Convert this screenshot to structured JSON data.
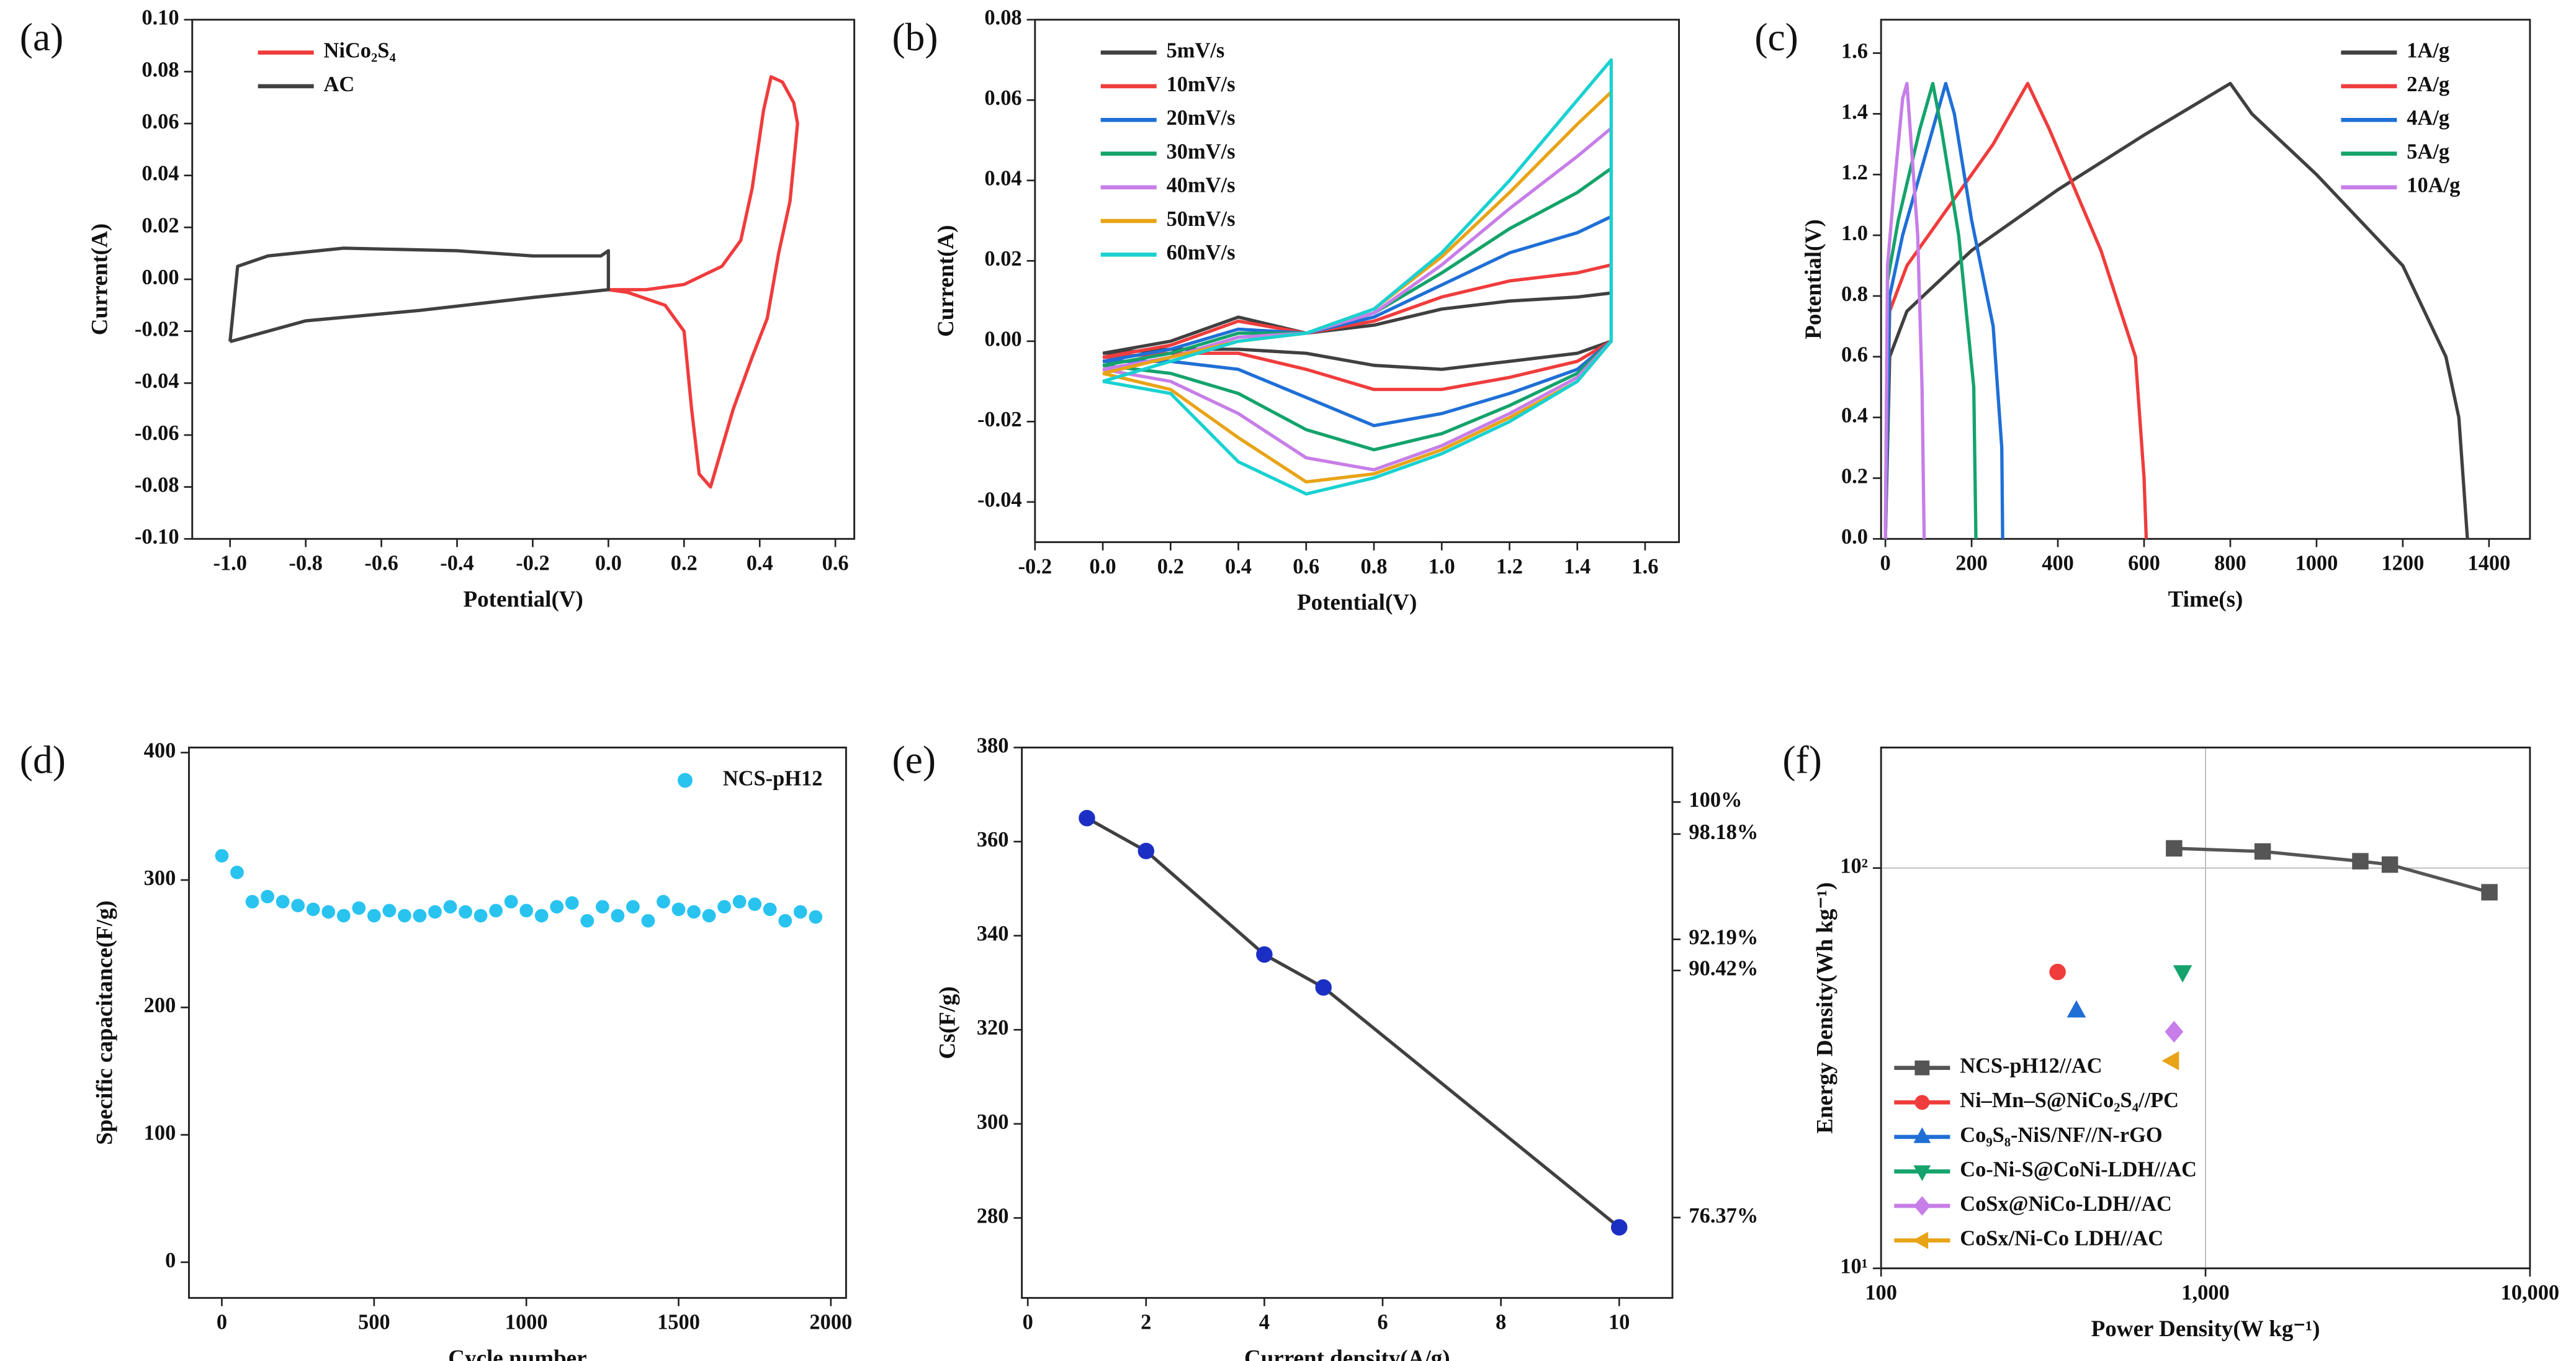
{
  "chart_data": [
    {
      "type": "line",
      "label": "(a)",
      "xlabel": "Potential(V)",
      "ylabel": "Current(A)",
      "xlim": [
        -1.1,
        0.65
      ],
      "ylim": [
        -0.1,
        0.1
      ],
      "xticks": [
        {
          "value": -1.0,
          "label": "-1.0"
        },
        -0.8,
        -0.6,
        -0.4,
        -0.2,
        {
          "value": 0,
          "label": "0.0"
        },
        0.2,
        0.4,
        0.6
      ],
      "yticks": [
        {
          "value": -0.1,
          "label": "-0.10"
        },
        -0.08,
        -0.06,
        -0.04,
        -0.02,
        {
          "value": 0,
          "label": "0.00"
        },
        0.02,
        0.04,
        0.06,
        0.08,
        {
          "value": 0.1,
          "label": "0.10"
        }
      ],
      "legend": "upper left",
      "series": [
        {
          "name": "NiCo₂S₄",
          "color": "#f03c3c",
          "x": [
            0,
            0.1,
            0.2,
            0.3,
            0.35,
            0.38,
            0.41,
            0.43,
            0.46,
            0.49,
            0.5,
            0.48,
            0.45,
            0.42,
            0.38,
            0.33,
            0.3,
            0.27,
            0.24,
            0.22,
            0.2,
            0.15,
            0.05,
            0
          ],
          "values": [
            -0.004,
            -0.004,
            -0.002,
            0.005,
            0.015,
            0.035,
            0.065,
            0.078,
            0.076,
            0.068,
            0.06,
            0.03,
            0.01,
            -0.015,
            -0.03,
            -0.05,
            -0.065,
            -0.08,
            -0.075,
            -0.05,
            -0.02,
            -0.01,
            -0.005,
            -0.004
          ]
        },
        {
          "name": "AC",
          "color": "#404040",
          "x": [
            -1.0,
            -0.98,
            -0.9,
            -0.7,
            -0.4,
            -0.2,
            -0.02,
            0,
            0,
            -0.2,
            -0.5,
            -0.8,
            -1.0
          ],
          "values": [
            -0.024,
            0.005,
            0.009,
            0.012,
            0.011,
            0.009,
            0.009,
            0.011,
            -0.004,
            -0.007,
            -0.012,
            -0.016,
            -0.024
          ]
        }
      ]
    },
    {
      "type": "line",
      "label": "(b)",
      "xlabel": "Potential(V)",
      "ylabel": "Current(A)",
      "xlim": [
        -0.2,
        1.7
      ],
      "ylim": [
        -0.05,
        0.08
      ],
      "xticks": [
        -0.2,
        {
          "value": 0,
          "label": "0.0"
        },
        0.2,
        0.4,
        0.6,
        0.8,
        {
          "value": 1,
          "label": "1.0"
        },
        1.2,
        1.4,
        1.6
      ],
      "yticks": [
        -0.04,
        -0.02,
        {
          "value": 0,
          "label": "0.00"
        },
        0.02,
        0.04,
        0.06,
        0.08
      ],
      "legend": "upper left",
      "x": [
        0,
        0.2,
        0.4,
        0.6,
        0.8,
        1.0,
        1.2,
        1.4,
        1.5,
        1.5,
        1.4,
        1.2,
        1.0,
        0.8,
        0.6,
        0.4,
        0.2,
        0
      ],
      "series": [
        {
          "name": "5mV/s",
          "color": "#404040",
          "values": [
            -0.003,
            0.0,
            0.006,
            0.002,
            0.004,
            0.008,
            0.01,
            0.011,
            0.012,
            0.0,
            -0.003,
            -0.005,
            -0.007,
            -0.006,
            -0.003,
            -0.002,
            -0.002,
            -0.003
          ]
        },
        {
          "name": "10mV/s",
          "color": "#f03c3c",
          "values": [
            -0.004,
            -0.001,
            0.005,
            0.002,
            0.005,
            0.011,
            0.015,
            0.017,
            0.019,
            0.0,
            -0.005,
            -0.009,
            -0.012,
            -0.012,
            -0.007,
            -0.003,
            -0.003,
            -0.004
          ]
        },
        {
          "name": "20mV/s",
          "color": "#1f6fd6",
          "values": [
            -0.005,
            -0.002,
            0.003,
            0.002,
            0.006,
            0.014,
            0.022,
            0.027,
            0.031,
            0.0,
            -0.007,
            -0.013,
            -0.018,
            -0.021,
            -0.014,
            -0.007,
            -0.005,
            -0.005
          ]
        },
        {
          "name": "30mV/s",
          "color": "#14a36b",
          "values": [
            -0.006,
            -0.003,
            0.002,
            0.002,
            0.007,
            0.017,
            0.028,
            0.037,
            0.043,
            0.0,
            -0.008,
            -0.016,
            -0.023,
            -0.027,
            -0.022,
            -0.013,
            -0.008,
            -0.006
          ]
        },
        {
          "name": "40mV/s",
          "color": "#c77ee8",
          "values": [
            -0.007,
            -0.004,
            0.001,
            0.002,
            0.007,
            0.019,
            0.033,
            0.046,
            0.053,
            0.0,
            -0.009,
            -0.018,
            -0.026,
            -0.032,
            -0.029,
            -0.018,
            -0.01,
            -0.007
          ]
        },
        {
          "name": "50mV/s",
          "color": "#e8a317",
          "values": [
            -0.008,
            -0.004,
            0.0,
            0.002,
            0.008,
            0.021,
            0.037,
            0.054,
            0.062,
            0.0,
            -0.01,
            -0.019,
            -0.027,
            -0.033,
            -0.035,
            -0.024,
            -0.012,
            -0.008
          ]
        },
        {
          "name": "60mV/s",
          "color": "#1ad1d1",
          "values": [
            -0.01,
            -0.005,
            0.0,
            0.002,
            0.008,
            0.022,
            0.04,
            0.06,
            0.07,
            0.0,
            -0.01,
            -0.02,
            -0.028,
            -0.034,
            -0.038,
            -0.03,
            -0.013,
            -0.01
          ]
        }
      ]
    },
    {
      "type": "line",
      "label": "(c)",
      "xlabel": "Time(s)",
      "ylabel": "Potential(V)",
      "xlim": [
        -10,
        1495
      ],
      "ylim": [
        0,
        1.71
      ],
      "xticks": [
        0,
        200,
        400,
        600,
        800,
        1000,
        1200,
        1400
      ],
      "yticks": [
        {
          "value": 0,
          "label": "0.0"
        },
        0.2,
        0.4,
        0.6,
        0.8,
        {
          "value": 1,
          "label": "1.0"
        },
        1.2,
        1.4,
        1.6
      ],
      "legend": "upper right",
      "series": [
        {
          "name": "1A/g",
          "color": "#404040",
          "x": [
            0,
            10,
            50,
            200,
            400,
            600,
            800,
            850,
            1000,
            1200,
            1300,
            1330,
            1345,
            1350
          ],
          "values": [
            0,
            0.6,
            0.75,
            0.95,
            1.15,
            1.33,
            1.5,
            1.4,
            1.2,
            0.9,
            0.6,
            0.4,
            0.1,
            0
          ]
        },
        {
          "name": "2A/g",
          "color": "#f03c3c",
          "x": [
            0,
            10,
            50,
            150,
            250,
            330,
            380,
            500,
            580,
            600,
            605
          ],
          "values": [
            0,
            0.75,
            0.9,
            1.1,
            1.3,
            1.5,
            1.35,
            0.95,
            0.6,
            0.2,
            0
          ]
        },
        {
          "name": "4A/g",
          "color": "#1f6fd6",
          "x": [
            0,
            10,
            40,
            100,
            140,
            160,
            200,
            250,
            270,
            272
          ],
          "values": [
            0,
            0.8,
            1.0,
            1.3,
            1.5,
            1.4,
            1.05,
            0.7,
            0.3,
            0
          ]
        },
        {
          "name": "5A/g",
          "color": "#14a36b",
          "x": [
            0,
            5,
            30,
            80,
            110,
            130,
            170,
            205,
            210
          ],
          "values": [
            0,
            0.85,
            1.05,
            1.35,
            1.5,
            1.35,
            1.0,
            0.5,
            0
          ]
        },
        {
          "name": "10A/g",
          "color": "#c77ee8",
          "x": [
            0,
            5,
            20,
            40,
            50,
            60,
            75,
            85,
            90
          ],
          "values": [
            0,
            0.9,
            1.15,
            1.45,
            1.5,
            1.3,
            1.0,
            0.5,
            0
          ]
        }
      ]
    },
    {
      "type": "scatter",
      "label": "(d)",
      "xlabel": "Cycle number",
      "ylabel": "Specific capacitance(F/g)",
      "xlim": [
        -108,
        2050
      ],
      "ylim": [
        -28,
        404
      ],
      "xticks": [
        0,
        500,
        1000,
        1500,
        2000
      ],
      "yticks": [
        0,
        100,
        200,
        300,
        400
      ],
      "legend": "upper right",
      "x": [
        0,
        50,
        100,
        150,
        200,
        250,
        300,
        350,
        400,
        450,
        500,
        550,
        600,
        650,
        700,
        750,
        800,
        850,
        900,
        950,
        1000,
        1050,
        1100,
        1150,
        1200,
        1250,
        1300,
        1350,
        1400,
        1450,
        1500,
        1550,
        1600,
        1650,
        1700,
        1750,
        1800,
        1850,
        1900,
        1950
      ],
      "series": [
        {
          "name": "NCS-pH12",
          "color": "#29c3f0",
          "values": [
            319,
            306,
            283,
            287,
            283,
            280,
            277,
            275,
            272,
            278,
            272,
            276,
            272,
            272,
            275,
            279,
            275,
            272,
            276,
            283,
            276,
            272,
            279,
            282,
            268,
            279,
            272,
            279,
            268,
            283,
            277,
            275,
            272,
            279,
            283,
            281,
            277,
            268,
            275,
            271
          ]
        }
      ]
    },
    {
      "type": "line",
      "label": "(e)",
      "xlabel": "Current density(A/g)",
      "ylabel": "Cs(F/g)",
      "xlim": [
        -0.1,
        10.9
      ],
      "ylim": [
        263,
        380
      ],
      "y2lim": [
        71.8,
        103.1
      ],
      "xticks": [
        0,
        2,
        4,
        6,
        8,
        10
      ],
      "yticks": [
        280,
        300,
        320,
        340,
        360,
        380
      ],
      "y2ticks": [
        {
          "value": 100,
          "label": "100%"
        },
        {
          "value": 98.18,
          "label": "98.18%"
        },
        {
          "value": 92.19,
          "label": "92.19%"
        },
        {
          "value": 90.42,
          "label": "90.42%"
        },
        {
          "value": 76.37,
          "label": "76.37%"
        }
      ],
      "series": [
        {
          "color": "#404040",
          "marker": "circle",
          "marker_color": "#1c2fc4",
          "x": [
            1,
            2,
            4,
            5,
            10
          ],
          "values": [
            365,
            358,
            336,
            329,
            278
          ]
        }
      ]
    },
    {
      "type": "line",
      "label": "(f)",
      "xlabel": "Power Density(W kg⁻¹)",
      "ylabel": "Energy Density(Wh kg⁻¹)",
      "xscale": "log",
      "yscale": "log",
      "grid": true,
      "xlim": [
        100,
        10000
      ],
      "ylim": [
        10,
        200
      ],
      "xticks": [
        100,
        {
          "value": 1000,
          "label": "1,000"
        },
        {
          "value": 10000,
          "label": "10,000"
        }
      ],
      "yticks": [
        {
          "value": 10,
          "label": "10¹"
        },
        {
          "value": 100,
          "label": "10²"
        }
      ],
      "legend": "lower left",
      "series": [
        {
          "name": "NCS-pH12//AC",
          "color": "#555555",
          "marker": "square",
          "x": [
            800,
            1500,
            3000,
            3700,
            7500
          ],
          "values": [
            112,
            110,
            104,
            102,
            87
          ]
        },
        {
          "name": "Ni–Mn–S@NiCo₂S₄//PC",
          "color": "#f03c3c",
          "marker": "circle",
          "x": [
            350
          ],
          "values": [
            55
          ]
        },
        {
          "name": "Co₉S₈-NiS/NF//N-rGO",
          "color": "#1f6fd6",
          "marker": "triangle-up",
          "x": [
            400
          ],
          "values": [
            44
          ]
        },
        {
          "name": "Co-Ni-S@CoNi-LDH//AC",
          "color": "#14a36b",
          "marker": "triangle-down",
          "x": [
            850
          ],
          "values": [
            55
          ]
        },
        {
          "name": "CoSx@NiCo-LDH//AC",
          "color": "#c77ee8",
          "marker": "diamond",
          "x": [
            800
          ],
          "values": [
            39
          ]
        },
        {
          "name": "CoSx/Ni-Co LDH//AC",
          "color": "#e8a317",
          "marker": "triangle-left",
          "x": [
            790
          ],
          "values": [
            33
          ]
        }
      ]
    }
  ]
}
